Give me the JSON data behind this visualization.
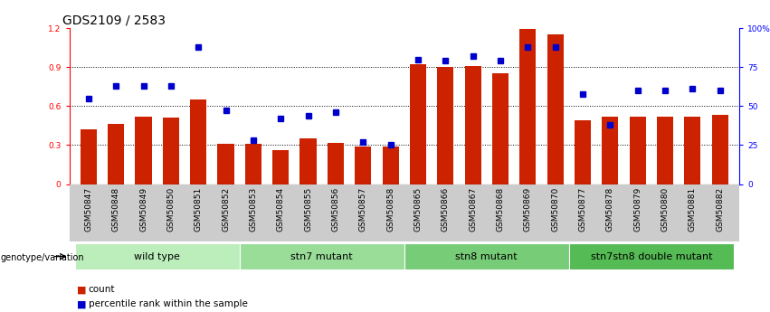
{
  "title": "GDS2109 / 2583",
  "samples": [
    "GSM50847",
    "GSM50848",
    "GSM50849",
    "GSM50850",
    "GSM50851",
    "GSM50852",
    "GSM50853",
    "GSM50854",
    "GSM50855",
    "GSM50856",
    "GSM50857",
    "GSM50858",
    "GSM50865",
    "GSM50866",
    "GSM50867",
    "GSM50868",
    "GSM50869",
    "GSM50870",
    "GSM50877",
    "GSM50878",
    "GSM50879",
    "GSM50880",
    "GSM50881",
    "GSM50882"
  ],
  "counts": [
    0.42,
    0.46,
    0.52,
    0.51,
    0.65,
    0.31,
    0.31,
    0.26,
    0.35,
    0.32,
    0.29,
    0.29,
    0.92,
    0.9,
    0.91,
    0.85,
    1.19,
    1.15,
    0.49,
    0.52,
    0.52,
    0.52,
    0.52,
    0.53
  ],
  "percentiles": [
    55,
    63,
    63,
    63,
    88,
    47,
    28,
    42,
    44,
    46,
    27,
    25,
    80,
    79,
    82,
    79,
    88,
    88,
    58,
    38,
    60,
    60,
    61,
    60
  ],
  "groups": [
    {
      "label": "wild type",
      "start": 0,
      "end": 5,
      "color": "#bbeebb"
    },
    {
      "label": "stn7 mutant",
      "start": 6,
      "end": 11,
      "color": "#99dd99"
    },
    {
      "label": "stn8 mutant",
      "start": 12,
      "end": 17,
      "color": "#77cc77"
    },
    {
      "label": "stn7stn8 double mutant",
      "start": 18,
      "end": 23,
      "color": "#55bb55"
    }
  ],
  "bar_color": "#cc2200",
  "dot_color": "#0000cc",
  "ylim_left": [
    0,
    1.2
  ],
  "ylim_right": [
    0,
    100
  ],
  "yticks_left": [
    0,
    0.3,
    0.6,
    0.9,
    1.2
  ],
  "ytick_labels_left": [
    "0",
    "0.3",
    "0.6",
    "0.9",
    "1.2"
  ],
  "yticks_right": [
    0,
    25,
    50,
    75,
    100
  ],
  "ytick_labels_right": [
    "0",
    "25",
    "50",
    "75",
    "100%"
  ],
  "hlines": [
    0.3,
    0.6,
    0.9
  ],
  "xlabel_left": "genotype/variation",
  "legend_count": "count",
  "legend_pct": "percentile rank within the sample",
  "xtick_bg_color": "#cccccc",
  "title_fontsize": 10,
  "tick_fontsize": 6.5,
  "group_fontsize": 8
}
